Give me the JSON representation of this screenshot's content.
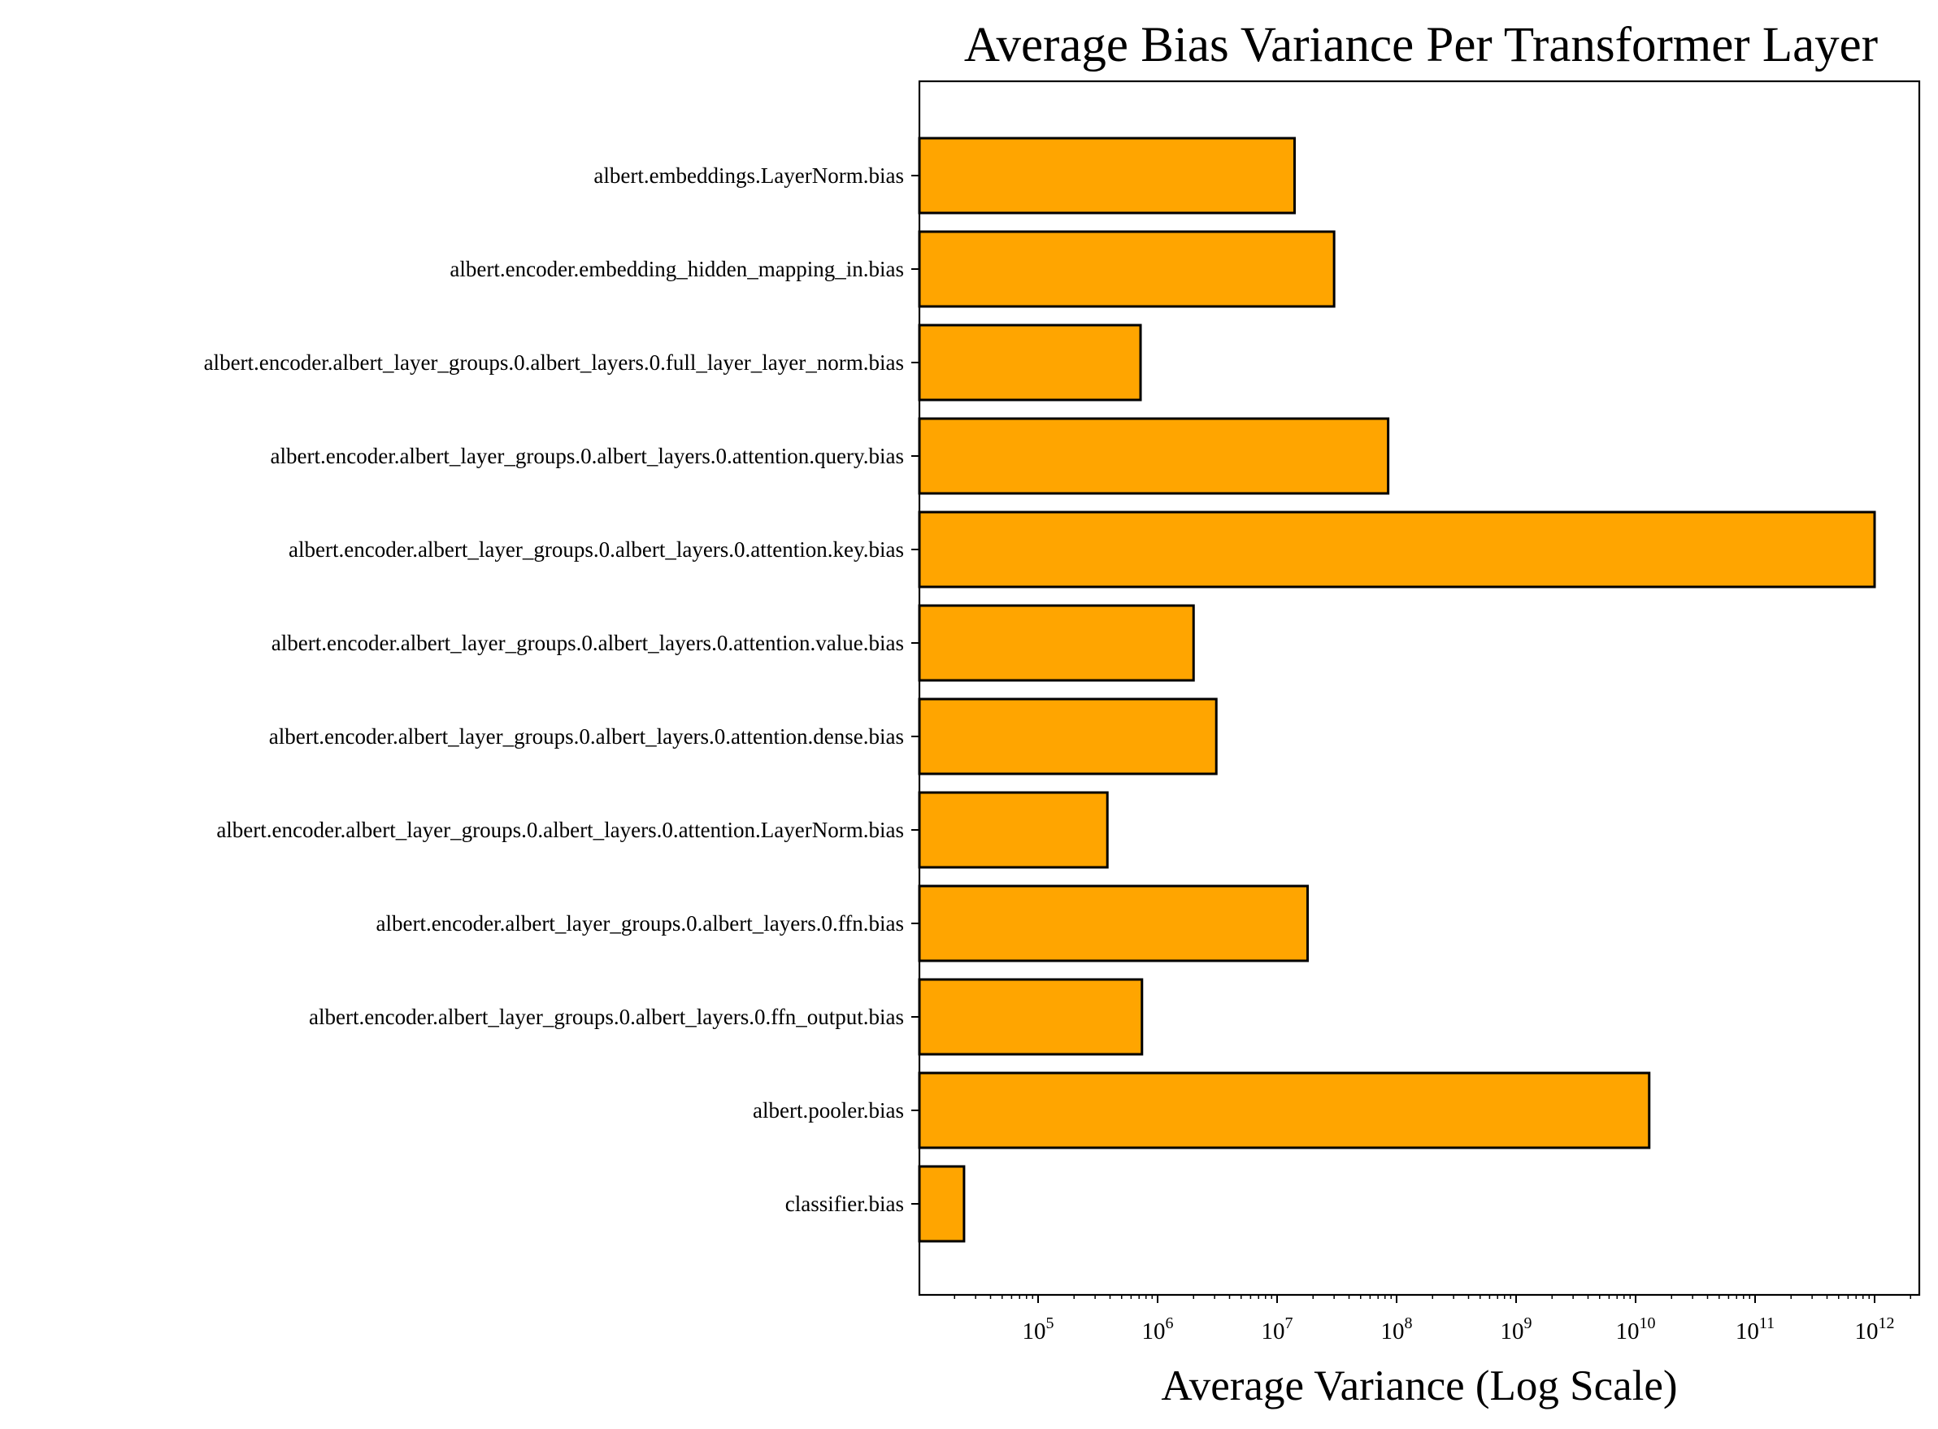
{
  "chart_data": {
    "type": "bar",
    "orientation": "horizontal",
    "title": "Average Bias Variance Per Transformer Layer",
    "xlabel": "Average Variance (Log Scale)",
    "ylabel": "",
    "x_scale": "log",
    "xlim": [
      10000,
      2500000000000
    ],
    "grid": false,
    "legend": "none",
    "categories": [
      "albert.embeddings.LayerNorm.bias",
      "albert.encoder.embedding_hidden_mapping_in.bias",
      "albert.encoder.albert_layer_groups.0.albert_layers.0.full_layer_layer_norm.bias",
      "albert.encoder.albert_layer_groups.0.albert_layers.0.attention.query.bias",
      "albert.encoder.albert_layer_groups.0.albert_layers.0.attention.key.bias",
      "albert.encoder.albert_layer_groups.0.albert_layers.0.attention.value.bias",
      "albert.encoder.albert_layer_groups.0.albert_layers.0.attention.dense.bias",
      "albert.encoder.albert_layer_groups.0.albert_layers.0.attention.LayerNorm.bias",
      "albert.encoder.albert_layer_groups.0.albert_layers.0.ffn.bias",
      "albert.encoder.albert_layer_groups.0.albert_layers.0.ffn_output.bias",
      "albert.pooler.bias",
      "classifier.bias"
    ],
    "values": [
      14000000,
      30000000,
      720000,
      85000000,
      1000000000000,
      2000000,
      3100000,
      380000,
      18000000,
      740000,
      13000000000,
      24000
    ],
    "x_ticks": [
      {
        "base": "10",
        "exp": "5",
        "value": 100000
      },
      {
        "base": "10",
        "exp": "6",
        "value": 1000000
      },
      {
        "base": "10",
        "exp": "7",
        "value": 10000000
      },
      {
        "base": "10",
        "exp": "8",
        "value": 100000000
      },
      {
        "base": "10",
        "exp": "9",
        "value": 1000000000
      },
      {
        "base": "10",
        "exp": "10",
        "value": 10000000000
      },
      {
        "base": "10",
        "exp": "11",
        "value": 100000000000
      },
      {
        "base": "10",
        "exp": "12",
        "value": 1000000000000
      }
    ],
    "colors": {
      "bar_fill": "#FFA500",
      "bar_edge": "#000000",
      "axis": "#000000"
    }
  }
}
